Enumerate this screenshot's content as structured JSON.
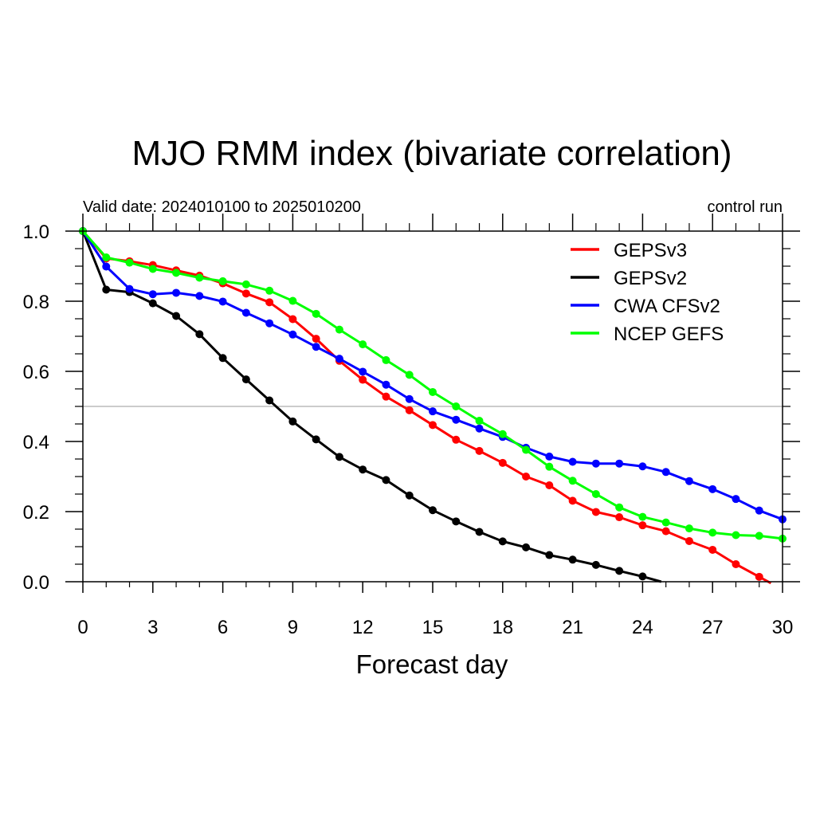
{
  "chart_data": {
    "type": "line",
    "title": "MJO RMM index (bivariate correlation)",
    "subtitle_left": "Valid date: 2024010100 to 2025010200",
    "subtitle_right": "control run",
    "xlabel": "Forecast day",
    "ylabel": "",
    "xlim": [
      0,
      30
    ],
    "ylim": [
      0,
      1
    ],
    "xticks": [
      0,
      3,
      6,
      9,
      12,
      15,
      18,
      21,
      24,
      27,
      30
    ],
    "xtick_labels": [
      "0",
      "3",
      "6",
      "9",
      "12",
      "15",
      "18",
      "21",
      "24",
      "27",
      "30"
    ],
    "yticks": [
      0,
      0.2,
      0.4,
      0.6,
      0.8,
      1.0
    ],
    "ytick_labels": [
      "0.0",
      "0.2",
      "0.4",
      "0.6",
      "0.8",
      "1.0"
    ],
    "reference_line": 0.5,
    "legend_position": "top-right",
    "series": [
      {
        "name": "GEPSv3",
        "color": "#ff0000",
        "x": [
          0,
          1,
          2,
          3,
          4,
          5,
          6,
          7,
          8,
          9,
          10,
          11,
          12,
          13,
          14,
          15,
          16,
          17,
          18,
          19,
          20,
          21,
          22,
          23,
          24,
          25,
          26,
          27,
          28,
          29,
          29.5
        ],
        "values": [
          1.0,
          0.922,
          0.914,
          0.903,
          0.888,
          0.873,
          0.851,
          0.822,
          0.797,
          0.749,
          0.693,
          0.63,
          0.576,
          0.528,
          0.489,
          0.447,
          0.405,
          0.373,
          0.339,
          0.3,
          0.275,
          0.231,
          0.199,
          0.184,
          0.161,
          0.144,
          0.116,
          0.091,
          0.05,
          0.014,
          -0.004
        ],
        "markers": 30
      },
      {
        "name": "GEPSv2",
        "color": "#000000",
        "x": [
          0,
          1,
          2,
          3,
          4,
          5,
          6,
          7,
          8,
          9,
          10,
          11,
          12,
          13,
          14,
          15,
          16,
          17,
          18,
          19,
          20,
          21,
          22,
          23,
          24,
          24.8
        ],
        "values": [
          1.0,
          0.833,
          0.826,
          0.794,
          0.758,
          0.706,
          0.638,
          0.577,
          0.517,
          0.457,
          0.406,
          0.356,
          0.32,
          0.29,
          0.246,
          0.204,
          0.172,
          0.142,
          0.115,
          0.098,
          0.076,
          0.063,
          0.048,
          0.031,
          0.015,
          0.0
        ],
        "markers": 25
      },
      {
        "name": "CWA CFSv2",
        "color": "#0000ff",
        "x": [
          0,
          1,
          2,
          3,
          4,
          5,
          6,
          7,
          8,
          9,
          10,
          11,
          12,
          13,
          14,
          15,
          16,
          17,
          18,
          19,
          20,
          21,
          22,
          23,
          24,
          25,
          26,
          27,
          28,
          29,
          30
        ],
        "values": [
          1.0,
          0.899,
          0.835,
          0.82,
          0.824,
          0.815,
          0.799,
          0.767,
          0.737,
          0.705,
          0.67,
          0.636,
          0.599,
          0.562,
          0.521,
          0.486,
          0.462,
          0.437,
          0.413,
          0.382,
          0.357,
          0.342,
          0.337,
          0.337,
          0.329,
          0.313,
          0.287,
          0.264,
          0.236,
          0.203,
          0.178
        ],
        "markers": 31
      },
      {
        "name": "NCEP GEFS",
        "color": "#00ff00",
        "x": [
          0,
          1,
          2,
          3,
          4,
          5,
          6,
          7,
          8,
          9,
          10,
          11,
          12,
          13,
          14,
          15,
          16,
          17,
          18,
          19,
          20,
          21,
          22,
          23,
          24,
          25,
          26,
          27,
          28,
          29,
          30
        ],
        "values": [
          1.0,
          0.925,
          0.91,
          0.892,
          0.881,
          0.867,
          0.857,
          0.848,
          0.83,
          0.801,
          0.764,
          0.719,
          0.677,
          0.632,
          0.59,
          0.541,
          0.5,
          0.459,
          0.421,
          0.376,
          0.328,
          0.288,
          0.25,
          0.212,
          0.185,
          0.169,
          0.152,
          0.14,
          0.133,
          0.131,
          0.123
        ],
        "markers": 31
      }
    ]
  }
}
